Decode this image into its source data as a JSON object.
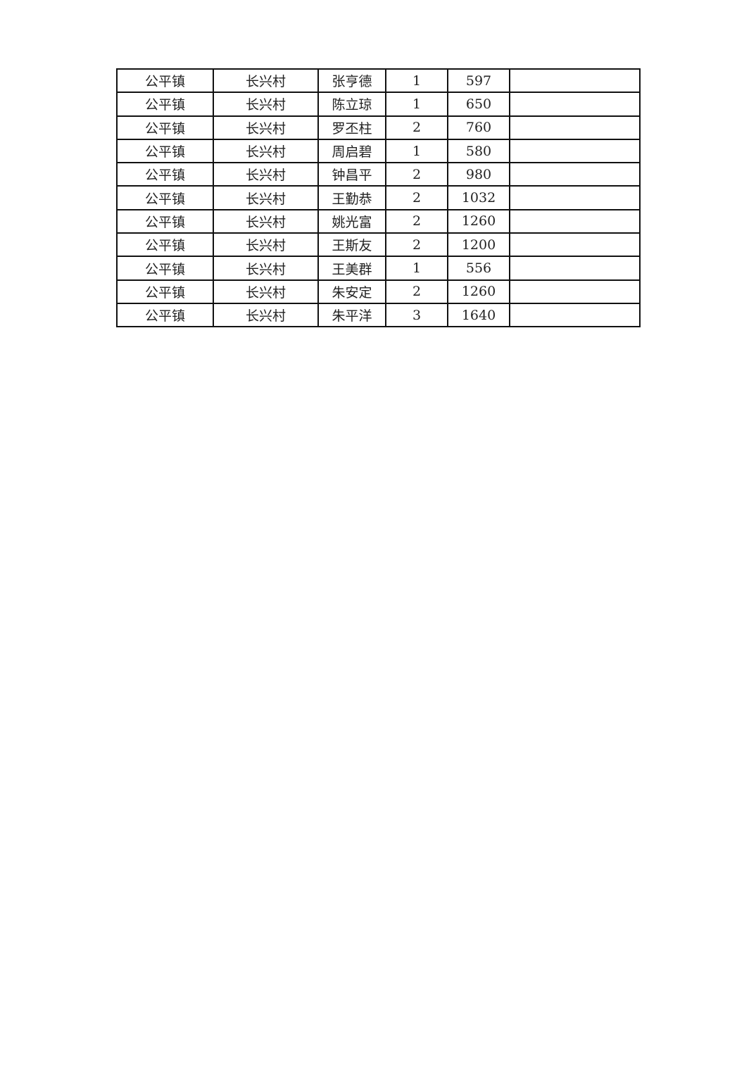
{
  "table": {
    "rows": [
      [
        "公平镇",
        "长兴村",
        "张亨德",
        "1",
        "597",
        ""
      ],
      [
        "公平镇",
        "长兴村",
        "陈立琼",
        "1",
        "650",
        ""
      ],
      [
        "公平镇",
        "长兴村",
        "罗丕柱",
        "2",
        "760",
        ""
      ],
      [
        "公平镇",
        "长兴村",
        "周启碧",
        "1",
        "580",
        ""
      ],
      [
        "公平镇",
        "长兴村",
        "钟昌平",
        "2",
        "980",
        ""
      ],
      [
        "公平镇",
        "长兴村",
        "王勤恭",
        "2",
        "1032",
        ""
      ],
      [
        "公平镇",
        "长兴村",
        "姚光富",
        "2",
        "1260",
        ""
      ],
      [
        "公平镇",
        "长兴村",
        "王斯友",
        "2",
        "1200",
        ""
      ],
      [
        "公平镇",
        "长兴村",
        "王美群",
        "1",
        "556",
        ""
      ],
      [
        "公平镇",
        "长兴村",
        "朱安定",
        "2",
        "1260",
        ""
      ],
      [
        "公平镇",
        "长兴村",
        "朱平洋",
        "3",
        "1640",
        ""
      ]
    ]
  }
}
